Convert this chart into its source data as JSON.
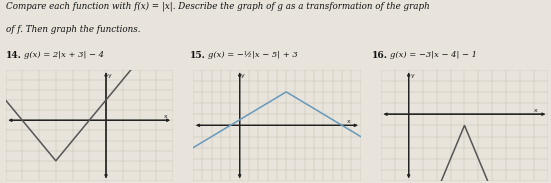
{
  "title_line1": "Compare each function with f(x) = |x|. Describe the graph of g as a transformation of the graph",
  "title_line2": "of f. Then graph the functions.",
  "problems": [
    {
      "number": "14.",
      "label": "g(x) = 2|x + 3| − 4",
      "vertex": [
        -3,
        -4
      ],
      "slope": 2,
      "xlim": [
        -6,
        4
      ],
      "ylim": [
        -6,
        5
      ],
      "graph_color": "#555555",
      "graph_lw": 1.1
    },
    {
      "number": "15.",
      "label": "g(x) = −½|x − 5| + 3",
      "vertex": [
        5,
        3
      ],
      "slope": -0.5,
      "xlim": [
        -5,
        13
      ],
      "ylim": [
        -5,
        5
      ],
      "graph_color": "#6699bb",
      "graph_lw": 1.1
    },
    {
      "number": "16.",
      "label": "g(x) = −3|x − 4| − 1",
      "vertex": [
        4,
        -1
      ],
      "slope": -3,
      "xlim": [
        -2,
        10
      ],
      "ylim": [
        -6,
        4
      ],
      "graph_color": "#555555",
      "graph_lw": 1.1
    }
  ],
  "background_color": "#e8e4dc",
  "grid_color": "#c8bfb0",
  "axis_color": "#222222",
  "text_color": "#111111",
  "title_fontsize": 6.3,
  "label_fontsize": 6.5
}
